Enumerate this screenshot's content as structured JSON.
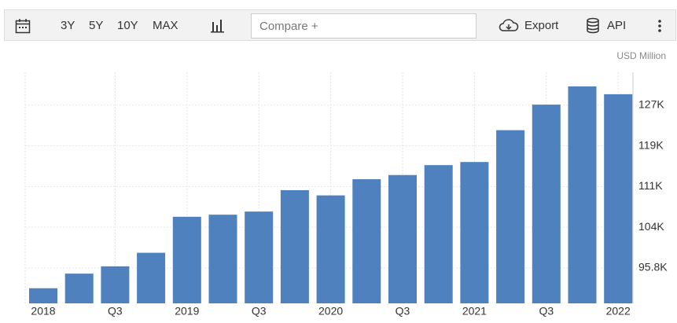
{
  "toolbar": {
    "ranges": [
      "3Y",
      "5Y",
      "10Y",
      "MAX"
    ],
    "compare_placeholder": "Compare +",
    "export": "Export",
    "api": "API"
  },
  "chart_data": {
    "type": "bar",
    "unit": "USD Million",
    "categories": [
      "2018",
      null,
      "Q3",
      null,
      "2019",
      null,
      "Q3",
      null,
      "2020",
      null,
      "Q3",
      null,
      "2021",
      null,
      "Q3",
      null,
      "2022"
    ],
    "values": [
      91900,
      94700,
      96100,
      98700,
      105600,
      106000,
      106600,
      110700,
      109700,
      112800,
      113600,
      115500,
      116100,
      122200,
      127100,
      130600,
      129100
    ],
    "color": "#4e81bd",
    "ylim": [
      89000,
      133300
    ],
    "yticks": [
      {
        "value": 95800,
        "label": "95.8K"
      },
      {
        "value": 103600,
        "label": "104K"
      },
      {
        "value": 111400,
        "label": "111K"
      },
      {
        "value": 119200,
        "label": "119K"
      },
      {
        "value": 127000,
        "label": "127K"
      }
    ],
    "grid": true
  }
}
